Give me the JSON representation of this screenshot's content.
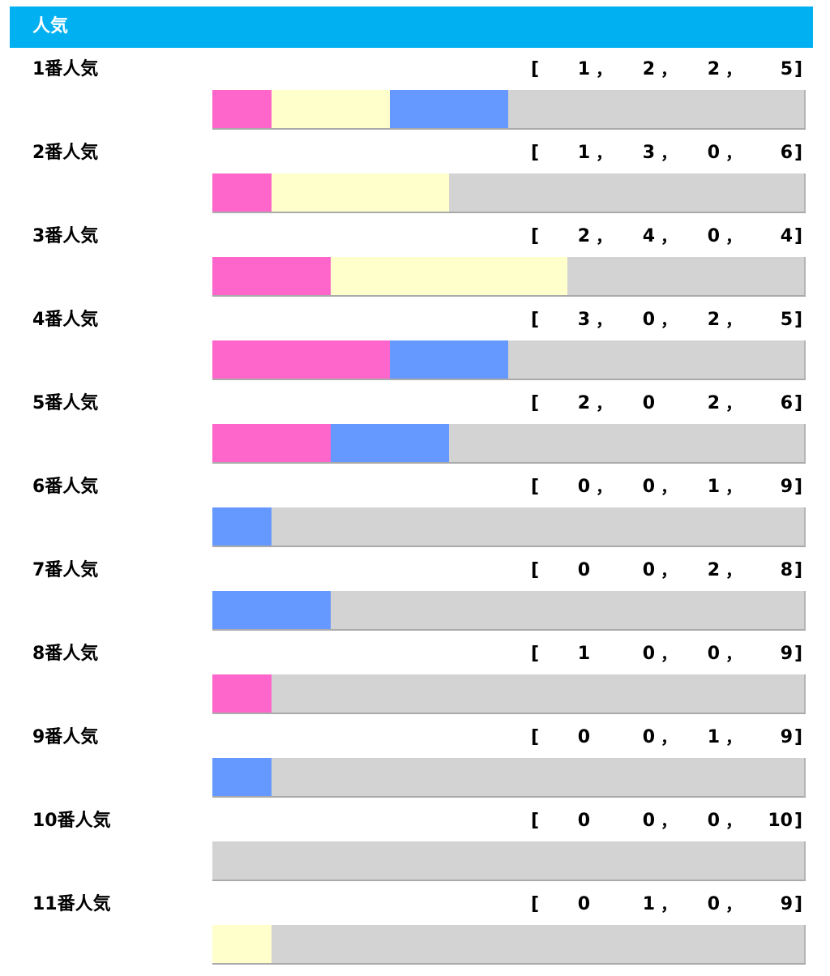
{
  "header": {
    "title": "人気"
  },
  "colors": {
    "header": "#00b0f0",
    "win": "#ff66cc",
    "place2": "#ffffcc",
    "place3": "#6699ff",
    "rest": "#d3d3d3"
  },
  "chart_data": {
    "type": "bar",
    "stacked": true,
    "title": "人気",
    "categories": [
      "1番人気",
      "2番人気",
      "3番人気",
      "4番人気",
      "5番人気",
      "6番人気",
      "7番人気",
      "8番人気",
      "9番人気",
      "10番人気",
      "11番人気"
    ],
    "series": [
      {
        "color": "#ff66cc",
        "values": [
          1,
          1,
          2,
          3,
          2,
          0,
          0,
          1,
          0,
          0,
          0
        ]
      },
      {
        "color": "#ffffcc",
        "values": [
          2,
          3,
          4,
          0,
          0,
          0,
          0,
          0,
          0,
          0,
          1
        ]
      },
      {
        "color": "#6699ff",
        "values": [
          2,
          0,
          0,
          2,
          2,
          1,
          2,
          0,
          1,
          0,
          0
        ]
      },
      {
        "color": "#d3d3d3",
        "values": [
          5,
          6,
          4,
          5,
          6,
          9,
          8,
          9,
          9,
          10,
          9
        ]
      }
    ],
    "records": [
      {
        "bracket_open": "[",
        "values": [
          "1",
          "2",
          "2",
          "5"
        ],
        "separators": [
          "，",
          "，",
          "，"
        ],
        "bracket_close": "]"
      },
      {
        "bracket_open": "[",
        "values": [
          "1",
          "3",
          "0",
          "6"
        ],
        "separators": [
          "，",
          "，",
          "，"
        ],
        "bracket_close": "]"
      },
      {
        "bracket_open": "[",
        "values": [
          "2",
          "4",
          "0",
          "4"
        ],
        "separators": [
          "，",
          "，",
          "，"
        ],
        "bracket_close": "]"
      },
      {
        "bracket_open": "[",
        "values": [
          "3",
          "0",
          "2",
          "5"
        ],
        "separators": [
          "，",
          "，",
          "，"
        ],
        "bracket_close": "]"
      },
      {
        "bracket_open": "[",
        "values": [
          "2",
          "0",
          "2",
          "6"
        ],
        "separators": [
          "，",
          "",
          "，"
        ],
        "bracket_close": "]"
      },
      {
        "bracket_open": "[",
        "values": [
          "0",
          "0",
          "1",
          "9"
        ],
        "separators": [
          "，",
          "，",
          "，"
        ],
        "bracket_close": "]"
      },
      {
        "bracket_open": "[",
        "values": [
          "0",
          "0",
          "2",
          "8"
        ],
        "separators": [
          "",
          "，",
          "，"
        ],
        "bracket_close": "]"
      },
      {
        "bracket_open": "[",
        "values": [
          "1",
          "0",
          "0",
          "9"
        ],
        "separators": [
          "",
          "，",
          "，"
        ],
        "bracket_close": "]"
      },
      {
        "bracket_open": "[",
        "values": [
          "0",
          "0",
          "1",
          "9"
        ],
        "separators": [
          "",
          "，",
          "，"
        ],
        "bracket_close": "]"
      },
      {
        "bracket_open": "[",
        "values": [
          "0",
          "0",
          "0",
          "10"
        ],
        "separators": [
          "",
          "，",
          "，"
        ],
        "bracket_close": "]"
      },
      {
        "bracket_open": "[",
        "values": [
          "0",
          "1",
          "0",
          "9"
        ],
        "separators": [
          "",
          "，",
          "，"
        ],
        "bracket_close": "]"
      }
    ]
  }
}
